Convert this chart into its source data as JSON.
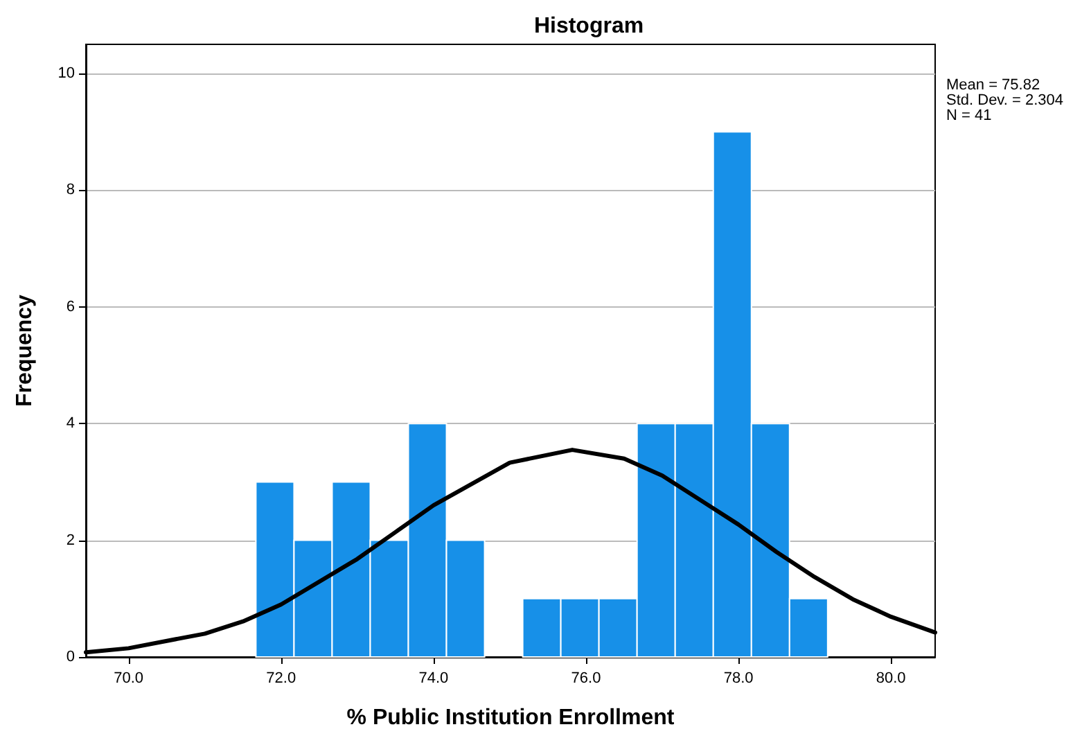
{
  "chart_data": {
    "type": "histogram",
    "title": "Histogram",
    "xlabel": "% Public Institution Enrollment",
    "ylabel": "Frequency",
    "bins": [
      71.67,
      72.17,
      72.67,
      73.17,
      73.67,
      74.17,
      74.67,
      75.17,
      75.67,
      76.17,
      76.67,
      77.17,
      77.67,
      78.17,
      78.67,
      79.17
    ],
    "values": [
      3,
      2,
      3,
      2,
      4,
      2,
      0,
      1,
      1,
      1,
      4,
      4,
      9,
      4,
      1
    ],
    "color": "#1790e8",
    "series": [
      {
        "type": "line",
        "color": "#000000",
        "x": [
          69.44,
          70,
          71,
          71.5,
          72,
          73,
          73.5,
          74,
          75,
          75.82,
          76.5,
          77,
          78,
          78.5,
          79,
          79.5,
          80,
          80.58
        ],
        "values": [
          0.08,
          0.15,
          0.4,
          0.61,
          0.9,
          1.68,
          2.14,
          2.6,
          3.33,
          3.55,
          3.4,
          3.11,
          2.27,
          1.8,
          1.37,
          0.99,
          0.69,
          0.42
        ]
      }
    ],
    "xlim": [
      69.44,
      80.58
    ],
    "xticks": [
      {
        "value": 70,
        "label": "70.0"
      },
      {
        "value": 72,
        "label": "72.0"
      },
      {
        "value": 74,
        "label": "74.0"
      },
      {
        "value": 76,
        "label": "76.0"
      },
      {
        "value": 78,
        "label": "78.0"
      },
      {
        "value": 80,
        "label": "80.0"
      }
    ],
    "ylim": [
      0,
      10.5
    ],
    "yticks": [
      0,
      2,
      4,
      6,
      8,
      10
    ],
    "grid": "y",
    "marker": "none",
    "line_style": "solid",
    "annotations": [
      "Mean = 75.82",
      "Std. Dev. = 2.304",
      "N = 41"
    ]
  }
}
